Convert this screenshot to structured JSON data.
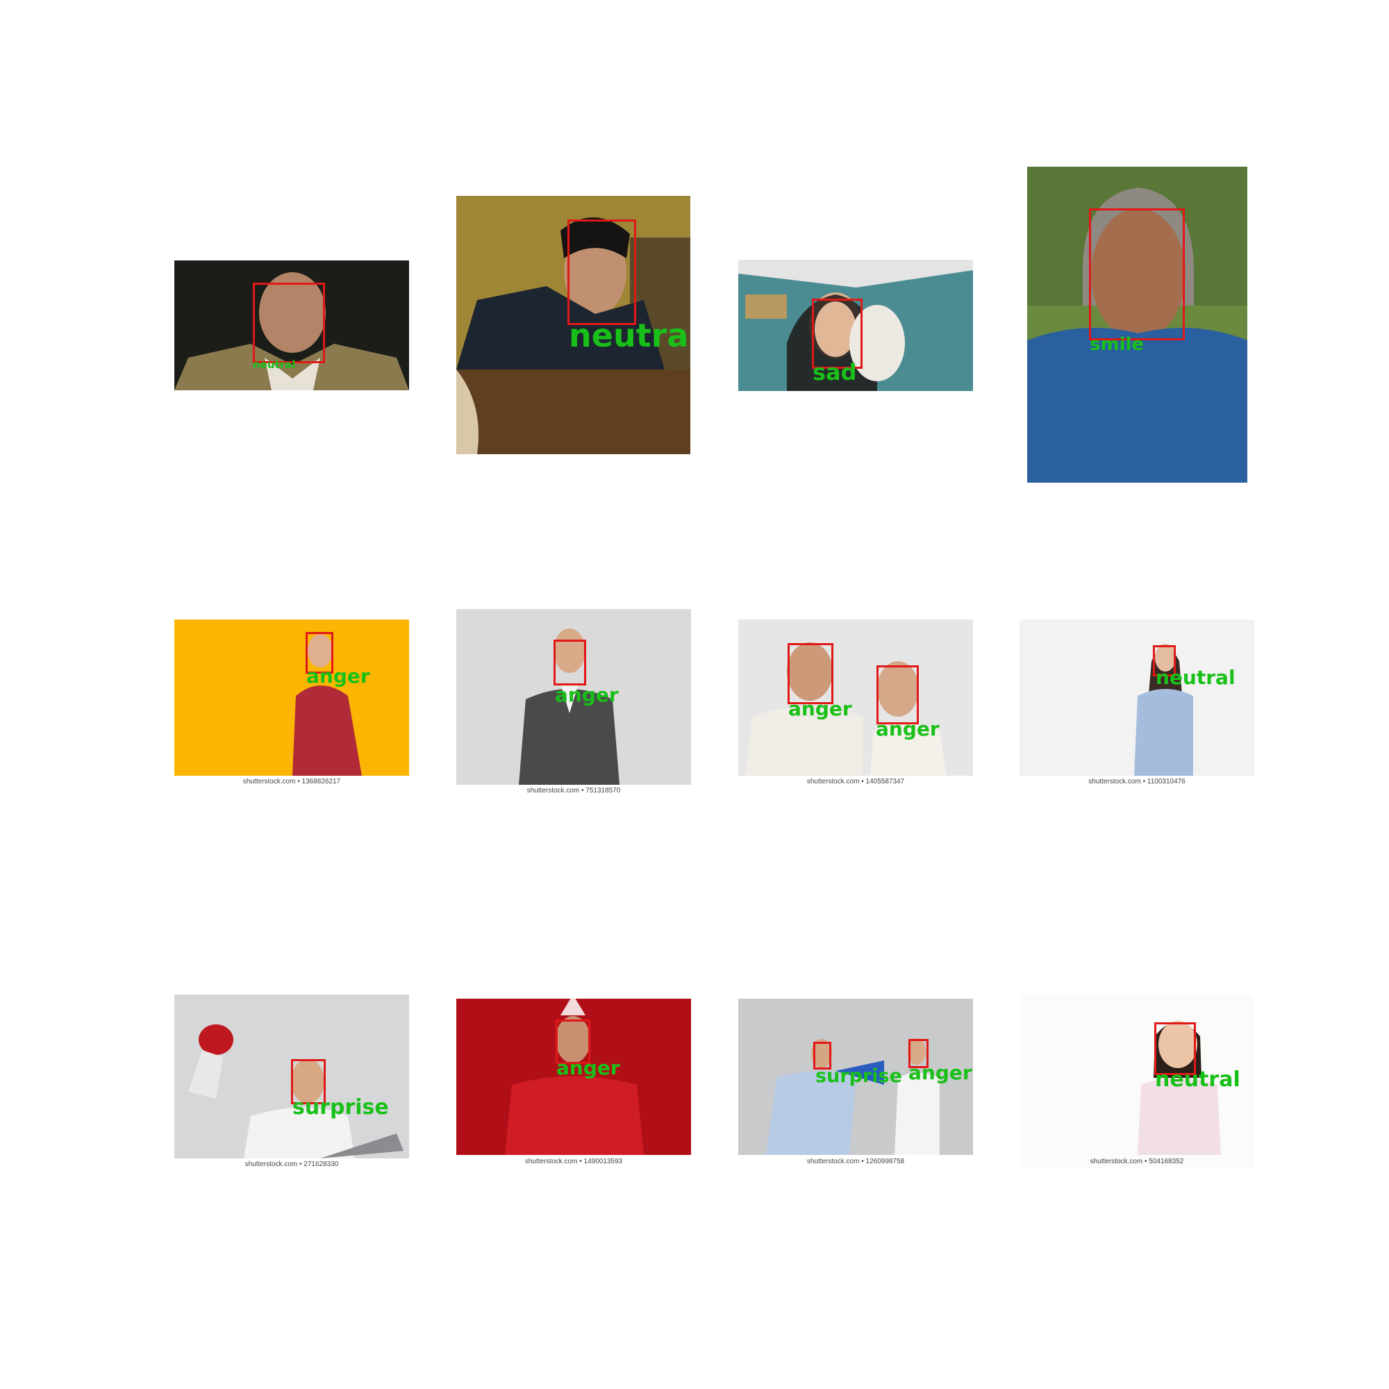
{
  "panels": [
    {
      "id": "p1",
      "faces": [
        {
          "label": "neutral"
        }
      ]
    },
    {
      "id": "p2",
      "faces": [
        {
          "label": "neutral"
        }
      ]
    },
    {
      "id": "p3",
      "faces": [
        {
          "label": "sad"
        }
      ]
    },
    {
      "id": "p4",
      "faces": [
        {
          "label": "smile"
        }
      ]
    },
    {
      "id": "p5",
      "watermark": "shutterstock.com • 1368826217",
      "faces": [
        {
          "label": "anger"
        }
      ]
    },
    {
      "id": "p6",
      "watermark": "shutterstock.com • 751318570",
      "faces": [
        {
          "label": "anger"
        }
      ]
    },
    {
      "id": "p7",
      "watermark": "shutterstock.com • 1405587347",
      "faces": [
        {
          "label": "anger"
        },
        {
          "label": "anger"
        }
      ]
    },
    {
      "id": "p8",
      "watermark": "shutterstock.com • 1100310476",
      "faces": [
        {
          "label": "neutral"
        }
      ]
    },
    {
      "id": "p9",
      "watermark": "shutterstock.com • 271628330",
      "faces": [
        {
          "label": "surprise"
        }
      ]
    },
    {
      "id": "p10",
      "watermark": "shutterstock.com • 1490013593",
      "faces": [
        {
          "label": "anger"
        }
      ]
    },
    {
      "id": "p11",
      "watermark": "shutterstock.com • 1260998758",
      "faces": [
        {
          "label": "surprise"
        },
        {
          "label": "anger"
        }
      ]
    },
    {
      "id": "p12",
      "watermark": "shutterstock.com • 504168352",
      "faces": [
        {
          "label": "neutral"
        }
      ]
    }
  ],
  "colors": {
    "box": "#e01818",
    "label": "#19c019"
  }
}
